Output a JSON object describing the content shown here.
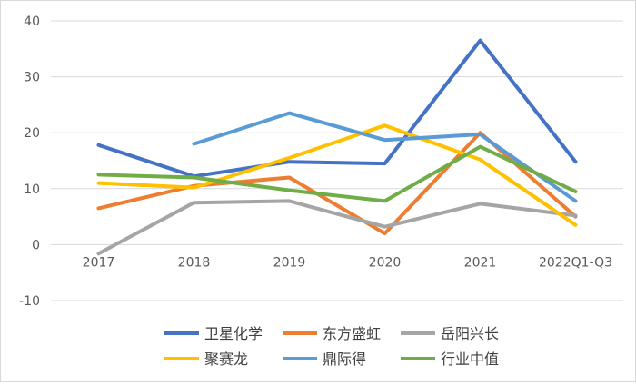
{
  "chart_data": {
    "type": "line",
    "title": "",
    "xlabel": "",
    "ylabel": "",
    "categories": [
      "2017",
      "2018",
      "2019",
      "2020",
      "2021",
      "2022Q1-Q3"
    ],
    "ylim": [
      -10,
      40
    ],
    "yticks": [
      -10,
      0,
      10,
      20,
      30,
      40
    ],
    "grid": true,
    "legend_position": "bottom",
    "series": [
      {
        "name": "卫星化学",
        "color": "#4472c4",
        "values": [
          17.8,
          12.2,
          14.8,
          14.5,
          36.5,
          14.8
        ]
      },
      {
        "name": "东方盛虹",
        "color": "#ed7d31",
        "values": [
          6.5,
          10.5,
          12.0,
          2.0,
          20.0,
          5.0
        ]
      },
      {
        "name": "岳阳兴长",
        "color": "#a5a5a5",
        "values": [
          -1.6,
          7.5,
          7.8,
          3.2,
          7.3,
          5.2
        ]
      },
      {
        "name": "聚赛龙",
        "color": "#ffc000",
        "values": [
          11.0,
          10.2,
          15.5,
          21.3,
          15.2,
          3.5
        ]
      },
      {
        "name": "鼎际得",
        "color": "#5b9bd5",
        "values": [
          null,
          18.0,
          23.5,
          18.7,
          19.7,
          7.8
        ]
      },
      {
        "name": "行业中值",
        "color": "#70ad47",
        "values": [
          12.5,
          12.0,
          9.7,
          7.8,
          17.5,
          9.5
        ]
      }
    ]
  }
}
